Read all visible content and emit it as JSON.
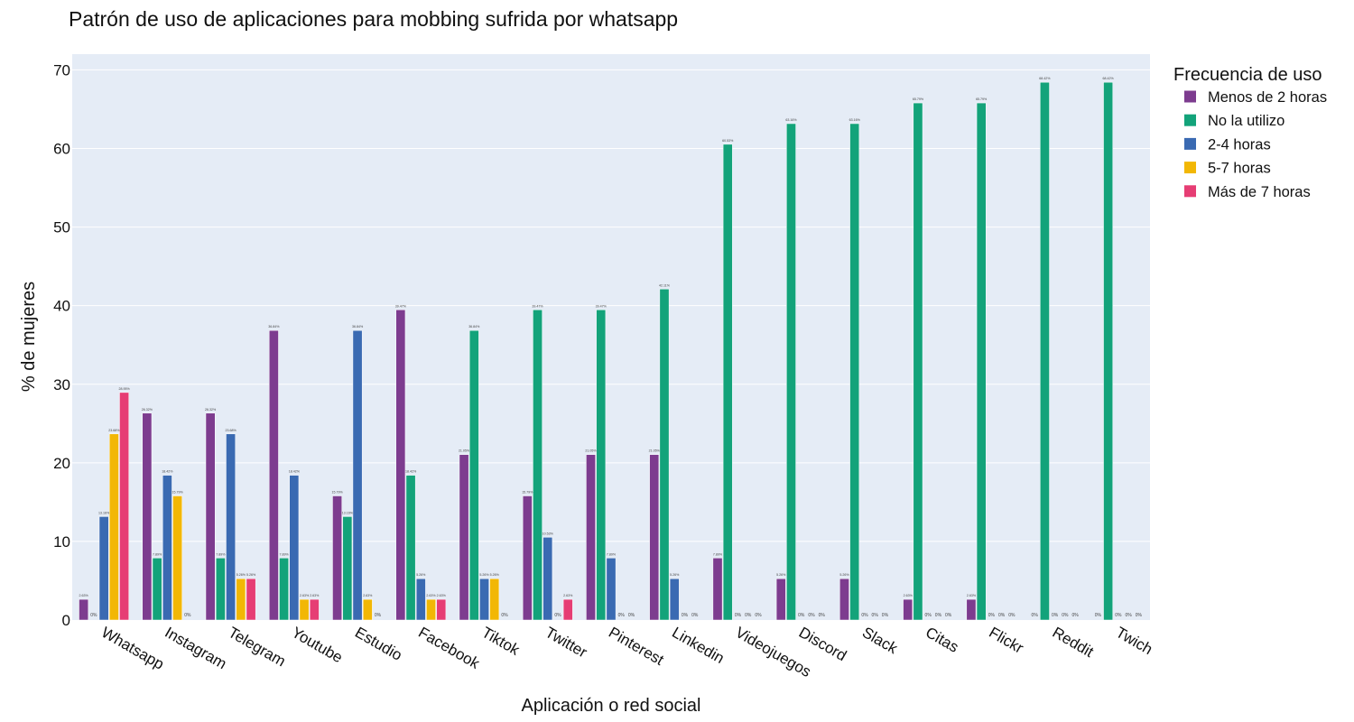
{
  "colors": {
    "plot_bg": "#e5ecf6",
    "grid": "#ffffff"
  },
  "chart_data": {
    "type": "bar",
    "title": "Patrón de uso de aplicaciones para mobbing sufrida por whatsapp",
    "xlabel": "Aplicación o red social",
    "ylabel": "% de mujeres",
    "ylim": [
      0,
      72
    ],
    "yticks": [
      0,
      10,
      20,
      30,
      40,
      50,
      60,
      70
    ],
    "grid": true,
    "legend": {
      "title": "Frecuencia de uso",
      "position": "top-right-outside"
    },
    "categories": [
      "Whatsapp",
      "Instagram",
      "Telegram",
      "Youtube",
      "Estudio",
      "Facebook",
      "Tiktok",
      "Twitter",
      "Pinterest",
      "Linkedin",
      "Videojuegos",
      "Discord",
      "Slack",
      "Citas",
      "Flickr",
      "Reddit",
      "Twich"
    ],
    "series": [
      {
        "name": "Menos de 2 horas",
        "color": "#7d3c8f",
        "values": [
          2.63,
          26.32,
          26.32,
          36.84,
          15.79,
          39.47,
          21.05,
          15.79,
          21.05,
          21.05,
          7.89,
          5.26,
          5.26,
          2.63,
          2.63,
          0,
          0
        ],
        "labels": [
          "2.63%",
          "26.32%",
          "26.32%",
          "36.84%",
          "15.79%",
          "39.47%",
          "21.05%",
          "15.79%",
          "21.05%",
          "21.05%",
          "7.89%",
          "5.26%",
          "5.26%",
          "2.63%",
          "2.63%",
          "0%",
          "0%"
        ]
      },
      {
        "name": "No la utilizo",
        "color": "#13a37a",
        "values": [
          0,
          7.89,
          7.89,
          7.89,
          13.16,
          18.42,
          36.84,
          39.47,
          39.47,
          42.11,
          60.53,
          63.16,
          63.16,
          65.79,
          65.79,
          68.42,
          68.42
        ],
        "labels": [
          "0%",
          "7.89%",
          "7.89%",
          "7.89%",
          "13.16%",
          "18.42%",
          "36.84%",
          "39.47%",
          "39.47%",
          "42.11%",
          "60.53%",
          "63.16%",
          "63.16%",
          "65.79%",
          "65.79%",
          "68.42%",
          "68.42%"
        ]
      },
      {
        "name": "2-4 horas",
        "color": "#3a6ab2",
        "values": [
          13.16,
          18.42,
          23.68,
          18.42,
          36.84,
          5.26,
          5.26,
          10.53,
          7.89,
          5.26,
          0,
          0,
          0,
          0,
          0,
          0,
          0
        ],
        "labels": [
          "13.16%",
          "18.42%",
          "23.68%",
          "18.42%",
          "36.84%",
          "5.26%",
          "5.26%",
          "10.53%",
          "7.89%",
          "5.26%",
          "0%",
          "0%",
          "0%",
          "0%",
          "0%",
          "0%",
          "0%"
        ]
      },
      {
        "name": "5-7 horas",
        "color": "#f2b705",
        "values": [
          23.68,
          15.79,
          5.26,
          2.63,
          2.63,
          2.63,
          5.26,
          0,
          0,
          0,
          0,
          0,
          0,
          0,
          0,
          0,
          0
        ],
        "labels": [
          "23.68%",
          "15.79%",
          "5.26%",
          "2.63%",
          "2.63%",
          "2.63%",
          "5.26%",
          "0%",
          "0%",
          "0%",
          "0%",
          "0%",
          "0%",
          "0%",
          "0%",
          "0%",
          "0%"
        ]
      },
      {
        "name": "Más de 7 horas",
        "color": "#e63d74",
        "values": [
          28.95,
          0,
          5.26,
          2.63,
          0,
          2.63,
          0,
          2.63,
          0,
          0,
          0,
          0,
          0,
          0,
          0,
          0,
          0
        ],
        "labels": [
          "28.95%",
          "0%",
          "5.26%",
          "2.63%",
          "0%",
          "2.63%",
          "0%",
          "2.63%",
          "0%",
          "0%",
          "0%",
          "0%",
          "0%",
          "0%",
          "0%",
          "0%",
          "0%"
        ]
      }
    ]
  }
}
